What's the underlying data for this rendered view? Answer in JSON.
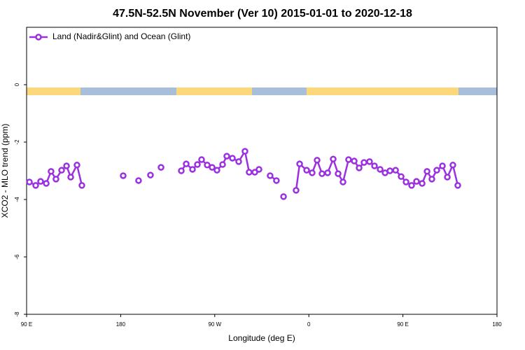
{
  "chart_data": {
    "type": "line",
    "title": "47.5N-52.5N November (Ver 10)   2015-01-01 to 2020-12-18",
    "xlabel": "Longitude (deg E)",
    "ylabel": "XCO2 - MLO trend (ppm)",
    "xlim": [
      90,
      540
    ],
    "ylim": [
      -8,
      2
    ],
    "xticks": [
      {
        "value": 90,
        "label": "90 E"
      },
      180,
      {
        "value": 270,
        "label": "90 W"
      },
      {
        "value": 360,
        "label": "0"
      },
      {
        "value": 450,
        "label": "90 E"
      },
      {
        "value": 540,
        "label": "180"
      }
    ],
    "yticks": [
      -8,
      -6,
      -4,
      -2,
      0
    ],
    "legend": "top-left",
    "x": [
      92.7,
      98.7,
      103.4,
      108.8,
      113.4,
      118.1,
      123.5,
      128.2,
      132.2,
      138.2,
      142.9,
      160,
      182.4,
      190,
      197.1,
      203,
      208.5,
      213,
      218.6,
      228,
      238,
      242.7,
      248.7,
      253.4,
      257.4,
      262.8,
      267.5,
      272.1,
      277.5,
      281.5,
      286.9,
      292.9,
      298.9,
      302.9,
      308.3,
      312.3,
      318,
      323,
      329,
      332,
      335.8,
      342,
      347.8,
      351.2,
      357.9,
      363.2,
      367.9,
      372.6,
      378,
      383.3,
      388,
      392.7,
      398,
      403.4,
      408.1,
      412.8,
      418.1,
      422.8,
      428.2,
      432.9,
      437.6,
      443,
      448.3,
      453,
      458.3,
      463,
      468.4,
      473.1,
      477.7,
      482.4,
      487.8,
      492.5,
      497.8,
      502.5
    ],
    "series": [
      {
        "name": "Land (Nadir&Glint) and Ocean (Glint)",
        "color": "#9b30e0",
        "values": [
          -3.39,
          -3.51,
          -3.37,
          -3.44,
          -3.02,
          -3.29,
          -2.98,
          -2.83,
          -3.22,
          -2.8,
          -3.51,
          null,
          -3.17,
          null,
          -3.34,
          null,
          -3.15,
          null,
          -2.88,
          null,
          -3.0,
          -2.76,
          -2.95,
          -2.78,
          -2.61,
          -2.8,
          -2.88,
          -2.98,
          -2.78,
          -2.49,
          -2.56,
          -2.68,
          -2.32,
          -3.05,
          -3.05,
          -2.95,
          null,
          -3.17,
          -3.34,
          null,
          -3.9,
          null,
          -3.68,
          -2.76,
          -2.98,
          -3.07,
          -2.63,
          -3.1,
          -3.07,
          -2.59,
          -3.1,
          -3.39,
          -2.61,
          -2.66,
          -2.9,
          -2.71,
          -2.68,
          -2.83,
          -2.95,
          -3.07,
          -3.0,
          -2.98,
          -3.2,
          -3.39,
          -3.51,
          -3.37,
          -3.44,
          -3.02,
          -3.29,
          -2.98,
          -2.83,
          -3.22,
          -2.8,
          -3.51
        ]
      }
    ]
  }
}
